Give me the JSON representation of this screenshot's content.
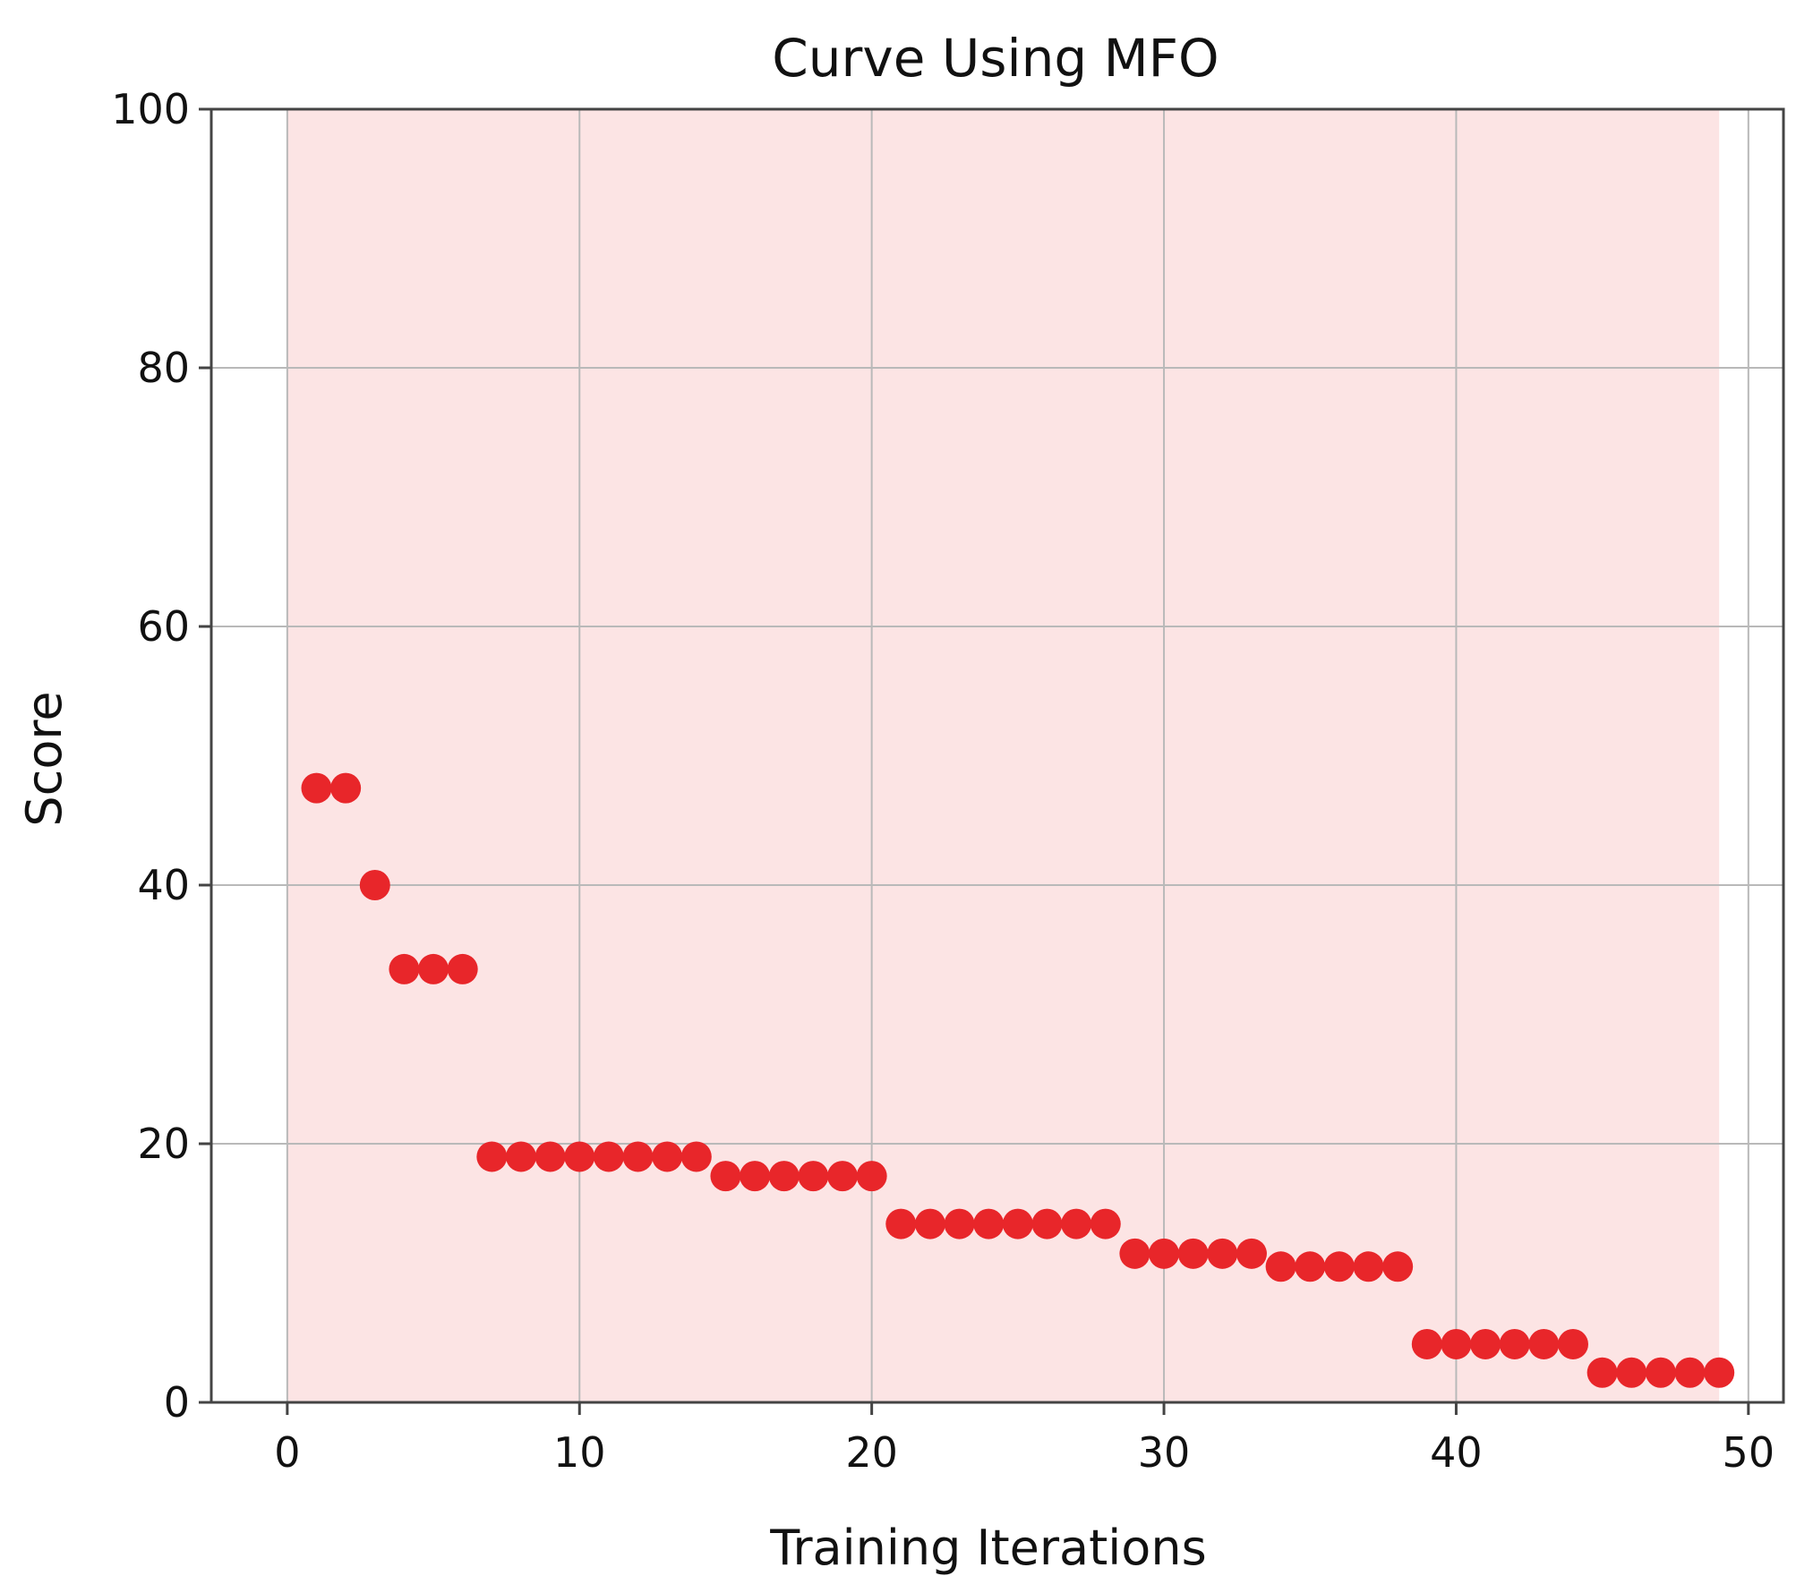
{
  "chart_data": {
    "type": "scatter",
    "title": "Curve Using MFO",
    "xlabel": "Training Iterations",
    "ylabel": "Score",
    "xlim": [
      -2.6,
      51.2
    ],
    "ylim": [
      0,
      100
    ],
    "xticks": [
      0,
      10,
      20,
      30,
      40,
      50
    ],
    "yticks": [
      0,
      20,
      40,
      60,
      80,
      100
    ],
    "grid": true,
    "shaded_region": {
      "x": [
        0,
        49
      ],
      "color": "#fce4e4"
    },
    "marker_color": "#e8262a",
    "points": {
      "x": [
        1,
        2,
        3,
        4,
        5,
        6,
        7,
        8,
        9,
        10,
        11,
        12,
        13,
        14,
        15,
        16,
        17,
        18,
        19,
        20,
        21,
        22,
        23,
        24,
        25,
        26,
        27,
        28,
        29,
        30,
        31,
        32,
        33,
        34,
        35,
        36,
        37,
        38,
        39,
        40,
        41,
        42,
        43,
        44,
        45,
        46,
        47,
        48,
        49
      ],
      "y": [
        47.5,
        47.5,
        40,
        33.5,
        33.5,
        33.5,
        19,
        19,
        19,
        19,
        19,
        19,
        19,
        19,
        17.5,
        17.5,
        17.5,
        17.5,
        17.5,
        17.5,
        13.8,
        13.8,
        13.8,
        13.8,
        13.8,
        13.8,
        13.8,
        13.8,
        11.5,
        11.5,
        11.5,
        11.5,
        11.5,
        10.5,
        10.5,
        10.5,
        10.5,
        10.5,
        4.5,
        4.5,
        4.5,
        4.5,
        4.5,
        4.5,
        2.3,
        2.3,
        2.3,
        2.3,
        2.3
      ]
    }
  }
}
